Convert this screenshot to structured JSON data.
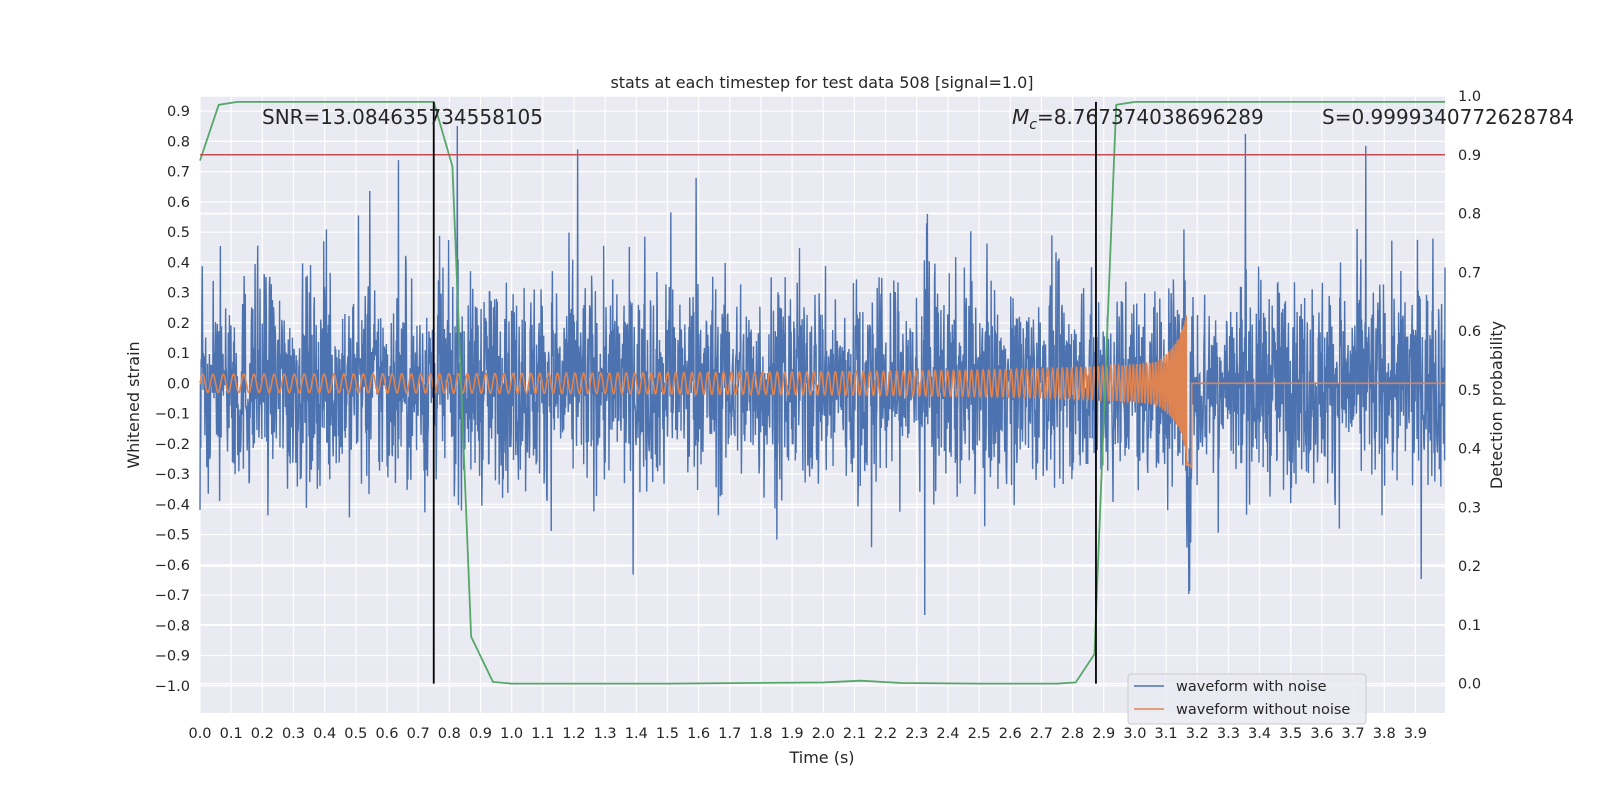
{
  "chart_data": {
    "type": "line",
    "title": "stats at each timestep for test data 508 [signal=1.0]",
    "xlabel": "Time (s)",
    "ylabel": "Whitened strain",
    "y2label": "Detection probability",
    "xlim": [
      0.0,
      3.995
    ],
    "ylim": [
      -1.09,
      0.95
    ],
    "y2lim": [
      -0.05,
      1.0
    ],
    "x_ticks": [
      "0.0",
      "0.1",
      "0.2",
      "0.3",
      "0.4",
      "0.5",
      "0.6",
      "0.7",
      "0.8",
      "0.9",
      "1.0",
      "1.1",
      "1.2",
      "1.3",
      "1.4",
      "1.5",
      "1.6",
      "1.7",
      "1.8",
      "1.9",
      "2.0",
      "2.1",
      "2.2",
      "2.3",
      "2.4",
      "2.5",
      "2.6",
      "2.7",
      "2.8",
      "2.9",
      "3.0",
      "3.1",
      "3.2",
      "3.3",
      "3.4",
      "3.5",
      "3.6",
      "3.7",
      "3.8",
      "3.9"
    ],
    "y_ticks": [
      "0.9",
      "0.8",
      "0.7",
      "0.6",
      "0.5",
      "0.4",
      "0.3",
      "0.2",
      "0.1",
      "0.0",
      "−0.1",
      "−0.2",
      "−0.3",
      "−0.4",
      "−0.5",
      "−0.6",
      "−0.7",
      "−0.8",
      "−0.9",
      "−1.0"
    ],
    "y2_ticks": [
      "1.0",
      "0.9",
      "0.8",
      "0.7",
      "0.6",
      "0.5",
      "0.4",
      "0.3",
      "0.2",
      "0.1",
      "0.0"
    ],
    "annotations": {
      "snr": "SNR=13.084635734558105",
      "mc": "=8.767374038696289",
      "mc_symbol": "M",
      "mc_sub": "c",
      "s": "S=0.9999340772628784"
    },
    "threshold": {
      "y2": 0.9,
      "color": "#c44e52"
    },
    "vlines_x": [
      0.75,
      2.875
    ],
    "series": [
      {
        "name": "waveform with noise",
        "color": "#4c72b0",
        "axis": "left",
        "kind": "noise",
        "amplitude_typical": 0.45,
        "amplitude_max": 0.9
      },
      {
        "name": "waveform without noise",
        "color": "#dd8452",
        "axis": "left",
        "kind": "chirp",
        "merger_time": 3.17,
        "amplitude_start": 0.03,
        "amplitude_peak": 0.32
      },
      {
        "name": "detection probability",
        "color": "#55a868",
        "axis": "right",
        "x": [
          0.0,
          0.06,
          0.12,
          0.19,
          0.25,
          0.31,
          0.37,
          0.44,
          0.5,
          0.56,
          0.62,
          0.69,
          0.75,
          0.81,
          0.87,
          0.94,
          1.0,
          1.5,
          2.0,
          2.12,
          2.25,
          2.5,
          2.75,
          2.81,
          2.87,
          2.94,
          3.0,
          3.5,
          3.995
        ],
        "values": [
          0.89,
          0.985,
          0.99,
          0.99,
          0.99,
          0.99,
          0.99,
          0.99,
          0.99,
          0.99,
          0.99,
          0.99,
          0.99,
          0.88,
          0.08,
          0.003,
          0.0,
          0.0,
          0.002,
          0.005,
          0.001,
          0.0,
          0.0,
          0.002,
          0.05,
          0.985,
          0.99,
          0.99,
          0.99
        ]
      }
    ],
    "legend": {
      "location": "lower-right",
      "entries": [
        {
          "label": "waveform with noise",
          "color": "#4c72b0"
        },
        {
          "label": "waveform without noise",
          "color": "#dd8452"
        }
      ]
    },
    "style": {
      "background": "#eaeaf2",
      "grid": true,
      "grid_color": "#ffffff"
    }
  }
}
